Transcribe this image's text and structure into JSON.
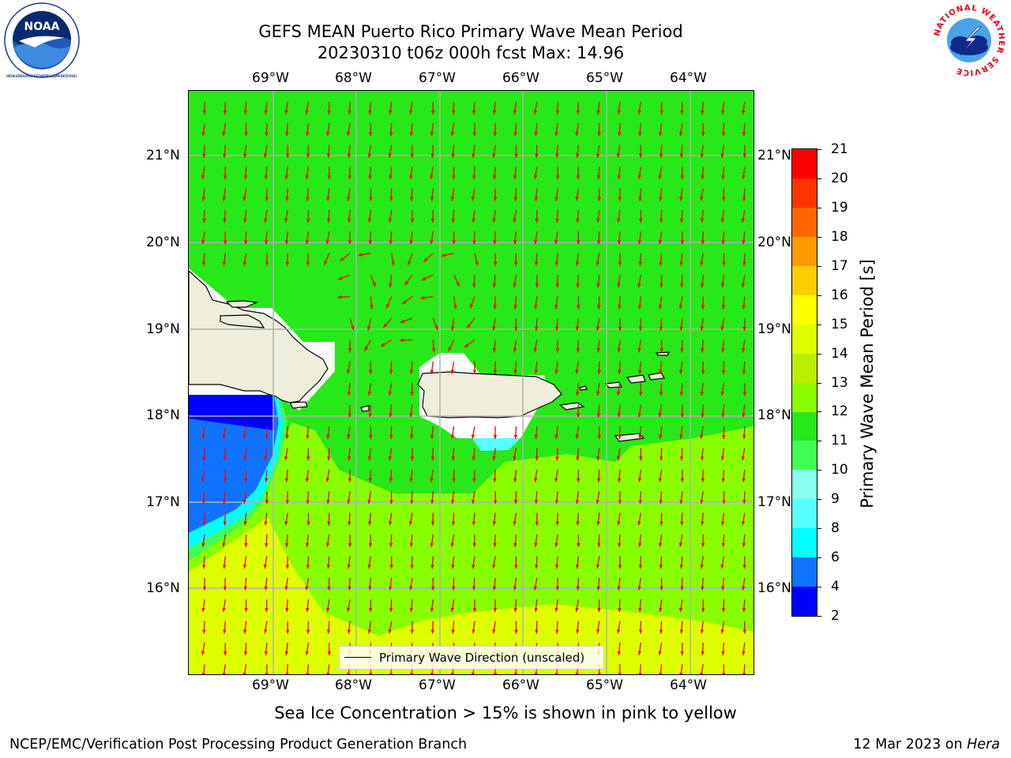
{
  "header": {
    "title_line1": "GEFS MEAN Puerto Rico Primary Wave Mean Period",
    "title_line2": "20230310 t06z 000h fcst   Max: 14.96"
  },
  "logos": {
    "left_text": "NOAA",
    "left_ring_text": "NATIONAL OCEANIC AND ATMOSPHERIC ADMINISTRATION · U.S. DEPARTMENT OF COMMERCE",
    "right_ring_text": "NATIONAL WEATHER SERVICE"
  },
  "map": {
    "lon_labels": [
      "69°W",
      "68°W",
      "67°W",
      "66°W",
      "65°W",
      "64°W"
    ],
    "lat_labels": [
      "21°N",
      "20°N",
      "19°N",
      "18°N",
      "17°N",
      "16°N"
    ],
    "legend_label": "Primary Wave Direction (unscaled)",
    "colors": {
      "land": "#efeedb",
      "arrow": "#ff0000",
      "grid": "#b0b0b0"
    }
  },
  "colorbar": {
    "title": "Primary Wave Mean Period [s]",
    "ticks": [
      "21",
      "20",
      "19",
      "18",
      "17",
      "16",
      "15",
      "14",
      "13",
      "12",
      "11",
      "10",
      "9",
      "8",
      "6",
      "4",
      "2"
    ],
    "bands": [
      {
        "from": 2,
        "to": 4,
        "color": "#0000ff"
      },
      {
        "from": 4,
        "to": 6,
        "color": "#0f73ff"
      },
      {
        "from": 6,
        "to": 8,
        "color": "#00ffff"
      },
      {
        "from": 8,
        "to": 9,
        "color": "#55ffff"
      },
      {
        "from": 9,
        "to": 10,
        "color": "#88ffee"
      },
      {
        "from": 10,
        "to": 11,
        "color": "#3fff55"
      },
      {
        "from": 11,
        "to": 12,
        "color": "#27e818"
      },
      {
        "from": 12,
        "to": 13,
        "color": "#88ff00"
      },
      {
        "from": 13,
        "to": 14,
        "color": "#bbee00"
      },
      {
        "from": 14,
        "to": 15,
        "color": "#ddff00"
      },
      {
        "from": 15,
        "to": 16,
        "color": "#ffff00"
      },
      {
        "from": 16,
        "to": 17,
        "color": "#ffcc00"
      },
      {
        "from": 17,
        "to": 18,
        "color": "#ff9900"
      },
      {
        "from": 18,
        "to": 19,
        "color": "#ff6600"
      },
      {
        "from": 19,
        "to": 20,
        "color": "#ff3300"
      },
      {
        "from": 20,
        "to": 21,
        "color": "#ff0000"
      }
    ]
  },
  "notes": {
    "sea_ice": "Sea Ice Concentration > 15% is shown in pink to yellow",
    "footer_left": "NCEP/EMC/Verification Post Processing Product Generation Branch",
    "footer_right_prefix": "12 Mar 2023 on ",
    "footer_right_host": "Hera"
  }
}
